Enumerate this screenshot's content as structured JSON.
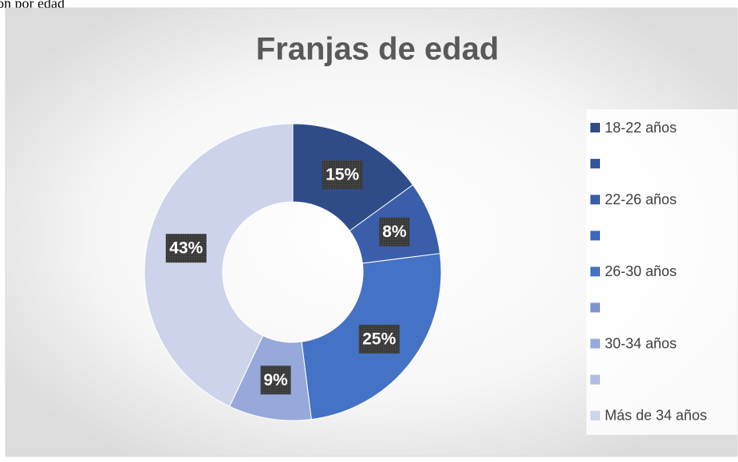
{
  "page_text": "ón por edad",
  "chart_data": {
    "type": "donut",
    "title": "Franjas de edad",
    "categories": [
      "18-22 años",
      null,
      "22-26 años",
      null,
      "26-30 años",
      null,
      "30-34 años",
      null,
      "Más de 34 años"
    ],
    "values": [
      15,
      0,
      8,
      0,
      25,
      0,
      9,
      0,
      43
    ],
    "value_labels": [
      "15%",
      null,
      "8%",
      null,
      "25%",
      null,
      "9%",
      null,
      "43%"
    ],
    "colors": [
      "#2f4c89",
      "#34559b",
      "#3a5ea9",
      "#3f68b9",
      "#4472c4",
      "#7e95d0",
      "#97a9da",
      "#b1bee3",
      "#ccd3eb"
    ],
    "legend": "right"
  }
}
